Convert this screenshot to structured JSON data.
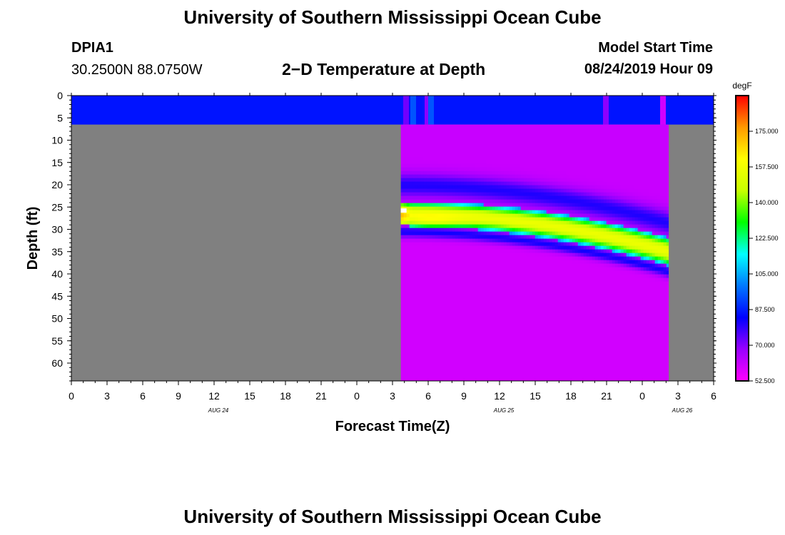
{
  "page": {
    "title_top": "University of Southern Mississippi Ocean Cube",
    "title_bottom": "University of Southern Mississippi Ocean Cube",
    "station": "DPIA1",
    "location": "30.2500N 88.0750W",
    "model_start_label": "Model Start Time",
    "model_start_value": "08/24/2019 Hour 09",
    "center_title": "2−D Temperature at Depth"
  },
  "chart_data": {
    "type": "heatmap",
    "title": "2−D Temperature at Depth",
    "xlabel": "Forecast Time(Z)",
    "ylabel": "Depth (ft)",
    "x_ticks": [
      "0",
      "3",
      "6",
      "9",
      "12",
      "15",
      "18",
      "21",
      "0",
      "3",
      "6",
      "9",
      "12",
      "15",
      "18",
      "21",
      "0",
      "3",
      "6"
    ],
    "date_labels": [
      {
        "label": "AUG 24",
        "tick_index": 4
      },
      {
        "label": "AUG 25",
        "tick_index": 12
      },
      {
        "label": "AUG 26",
        "tick_index": 17
      }
    ],
    "xlim_hours": [
      0,
      54
    ],
    "y_ticks": [
      0,
      5,
      10,
      15,
      20,
      25,
      30,
      35,
      40,
      45,
      50,
      55,
      60
    ],
    "ylim_ft": [
      0,
      64
    ],
    "data_window_hours": [
      27.7,
      50.2
    ],
    "surface_layer_depth_ft": [
      0,
      6.5
    ],
    "no_data_color": "#808080",
    "colorbar": {
      "unit": "degF",
      "range": [
        52.5,
        192.5
      ],
      "ticks": [
        "175.000",
        "157.500",
        "140.000",
        "122.500",
        "105.000",
        "87.500",
        "70.000",
        "52.500"
      ],
      "tick_values": [
        175,
        157.5,
        140,
        122.5,
        105,
        87.5,
        70,
        52.5
      ],
      "colors": [
        "#ff00ff",
        "#9900ff",
        "#0000ff",
        "#0078ff",
        "#00ffff",
        "#00ff00",
        "#c8ff00",
        "#ffff00",
        "#ff9900",
        "#ff0000"
      ]
    }
  }
}
